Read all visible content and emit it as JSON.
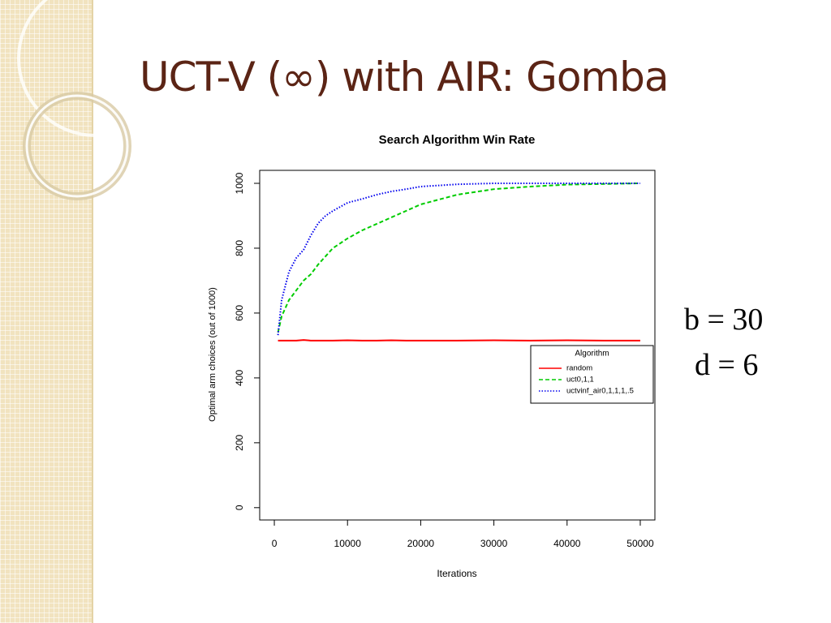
{
  "slide_title": "UCT-V (∞) with AIR: Gomba",
  "equations": [
    "b = 30",
    "d = 6"
  ],
  "chart_data": {
    "type": "line",
    "title": "Search Algorithm Win Rate",
    "x_label": "Iterations",
    "y_label": "Optimal arm choices  (out of 1000)",
    "legend_title": "Algorithm",
    "legend": "right",
    "x": [
      500,
      1000,
      2000,
      3000,
      4000,
      5000,
      6000,
      7000,
      8000,
      10000,
      12000,
      14000,
      16000,
      18000,
      20000,
      25000,
      30000,
      35000,
      40000,
      45000,
      50000
    ],
    "series": [
      {
        "name": "random",
        "color": "#ff0000",
        "dash": "solid",
        "values": [
          515,
          515,
          515,
          515,
          517,
          515,
          515,
          515,
          515,
          516,
          515,
          515,
          516,
          515,
          515,
          515,
          516,
          515,
          516,
          515,
          515
        ]
      },
      {
        "name": "uct0,1,1",
        "color": "#00cc00",
        "dash": "dashed",
        "values": [
          540,
          590,
          640,
          670,
          700,
          720,
          750,
          775,
          800,
          830,
          855,
          875,
          895,
          915,
          935,
          965,
          982,
          990,
          996,
          998,
          1000
        ]
      },
      {
        "name": "uctvinf_air0,1,1,1,.5",
        "color": "#0000ee",
        "dash": "dotted",
        "values": [
          532,
          640,
          727,
          770,
          795,
          840,
          877,
          900,
          915,
          940,
          952,
          965,
          975,
          982,
          990,
          997,
          1000,
          1000,
          1000,
          1000,
          1000
        ]
      }
    ],
    "xlim": [
      -2000,
      52000
    ],
    "ylim": [
      -38,
      1040
    ],
    "xticks": [
      0,
      10000,
      20000,
      30000,
      40000,
      50000
    ],
    "yticks": [
      0,
      200,
      400,
      600,
      800,
      1000
    ]
  }
}
